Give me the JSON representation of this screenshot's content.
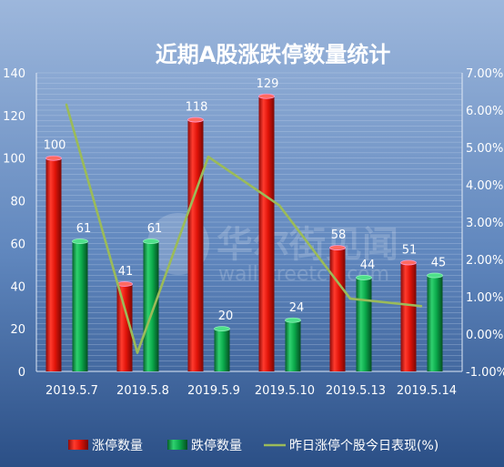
{
  "chart_data": {
    "type": "bar",
    "title": "近期A股涨跌停数量统计",
    "categories": [
      "2019.5.7",
      "2019.5.8",
      "2019.5.9",
      "2019.5.10",
      "2019.5.13",
      "2019.5.14"
    ],
    "series": [
      {
        "name": "涨停数量",
        "type": "bar",
        "axis": "left",
        "color": "#e8150d",
        "values": [
          100,
          41,
          118,
          129,
          58,
          51
        ]
      },
      {
        "name": "跌停数量",
        "type": "bar",
        "axis": "left",
        "color": "#0aa84a",
        "values": [
          61,
          61,
          20,
          24,
          44,
          45
        ]
      },
      {
        "name": "昨日涨停个股今日表现(%)",
        "type": "line",
        "axis": "right",
        "color": "#9bbb59",
        "values": [
          6.15,
          -0.5,
          4.75,
          3.45,
          0.95,
          0.75
        ]
      }
    ],
    "ylim_left": [
      0,
      140
    ],
    "ylim_right": [
      -1,
      7
    ],
    "yticks_left": [
      "0",
      "20",
      "40",
      "60",
      "80",
      "100",
      "120",
      "140"
    ],
    "yticks_right": [
      "-1.00%",
      "0.00%",
      "1.00%",
      "2.00%",
      "3.00%",
      "4.00%",
      "5.00%",
      "6.00%",
      "7.00%"
    ],
    "grid": true,
    "legend": "bottom"
  },
  "watermark": {
    "cn": "华尔街见闻",
    "en": "wallstreetcn.com"
  }
}
